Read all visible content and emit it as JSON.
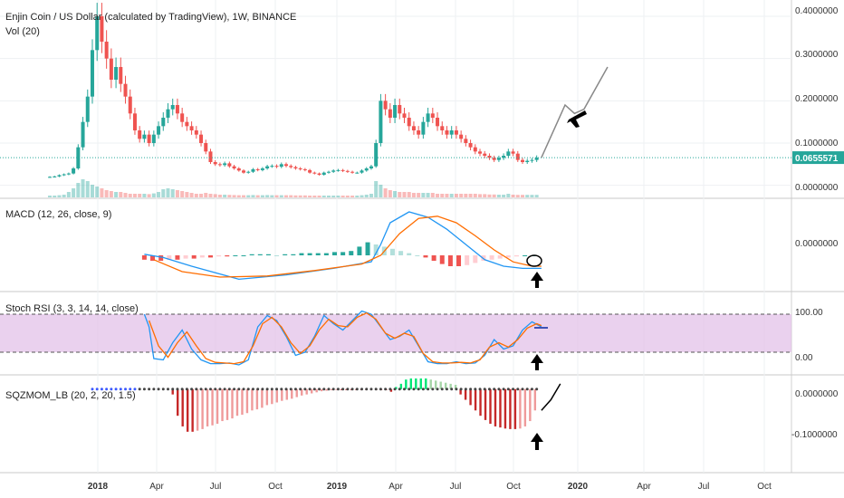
{
  "chart_data": {
    "type": "candlestick-with-indicators",
    "title": "Enjin Coin / US Dollar (calculated by TradingView), 1W, BINANCE",
    "x_axis": {
      "labels": [
        "2018",
        "Apr",
        "Jul",
        "Oct",
        "2019",
        "Apr",
        "Jul",
        "Oct",
        "2020",
        "Apr",
        "Jul",
        "Oct"
      ],
      "major": [
        "2018",
        "2019",
        "2020"
      ]
    },
    "price_pane": {
      "volume_label": "Vol (20)",
      "y_ticks": [
        "0.4000000",
        "0.3000000",
        "0.2000000",
        "0.1000000",
        "0.0000000"
      ],
      "y_range": [
        -0.02,
        0.43
      ],
      "current_price": "0.0655571",
      "current_price_value": 0.0655571,
      "up_color": "#26a69a",
      "down_color": "#ef5350",
      "weekly_closes": [
        0.02,
        0.021,
        0.024,
        0.026,
        0.028,
        0.04,
        0.09,
        0.15,
        0.21,
        0.32,
        0.4,
        0.34,
        0.3,
        0.25,
        0.28,
        0.24,
        0.21,
        0.17,
        0.13,
        0.11,
        0.12,
        0.1,
        0.12,
        0.14,
        0.16,
        0.18,
        0.19,
        0.17,
        0.15,
        0.14,
        0.13,
        0.12,
        0.1,
        0.08,
        0.055,
        0.05,
        0.048,
        0.052,
        0.045,
        0.04,
        0.035,
        0.03,
        0.032,
        0.038,
        0.036,
        0.04,
        0.045,
        0.046,
        0.044,
        0.05,
        0.046,
        0.043,
        0.04,
        0.038,
        0.036,
        0.03,
        0.028,
        0.025,
        0.03,
        0.032,
        0.035,
        0.036,
        0.034,
        0.032,
        0.03,
        0.03,
        0.035,
        0.04,
        0.045,
        0.1,
        0.2,
        0.18,
        0.16,
        0.19,
        0.17,
        0.16,
        0.14,
        0.13,
        0.12,
        0.15,
        0.17,
        0.16,
        0.14,
        0.13,
        0.12,
        0.13,
        0.12,
        0.11,
        0.1,
        0.09,
        0.08,
        0.075,
        0.07,
        0.065,
        0.06,
        0.065,
        0.07,
        0.08,
        0.075,
        0.06,
        0.055,
        0.058,
        0.06,
        0.0655571
      ],
      "projection": [
        [
          104,
          0.0655
        ],
        [
          109,
          0.19
        ],
        [
          111,
          0.17
        ],
        [
          113,
          0.18
        ],
        [
          118,
          0.28
        ]
      ],
      "volume_levels": [
        0.1,
        0.1,
        0.12,
        0.15,
        0.3,
        0.5,
        0.8,
        1.0,
        0.9,
        0.7,
        0.6,
        0.5,
        0.4,
        0.35,
        0.3,
        0.3,
        0.25,
        0.2,
        0.2,
        0.2,
        0.2,
        0.18,
        0.22,
        0.3,
        0.45,
        0.5,
        0.45,
        0.4,
        0.35,
        0.3,
        0.25,
        0.2,
        0.2,
        0.25,
        0.2,
        0.18,
        0.15,
        0.15,
        0.14,
        0.13,
        0.12,
        0.12,
        0.12,
        0.13,
        0.12,
        0.12,
        0.13,
        0.12,
        0.12,
        0.12,
        0.12,
        0.12,
        0.11,
        0.11,
        0.11,
        0.1,
        0.1,
        0.1,
        0.1,
        0.1,
        0.1,
        0.1,
        0.1,
        0.1,
        0.1,
        0.1,
        0.12,
        0.15,
        0.2,
        0.9,
        0.7,
        0.5,
        0.4,
        0.35,
        0.3,
        0.3,
        0.3,
        0.25,
        0.25,
        0.25,
        0.25,
        0.25,
        0.2,
        0.2,
        0.2,
        0.2,
        0.2,
        0.2,
        0.2,
        0.2,
        0.2,
        0.18,
        0.18,
        0.16,
        0.16,
        0.15,
        0.15,
        0.2,
        0.15,
        0.14,
        0.14,
        0.14,
        0.14,
        0.14
      ]
    },
    "macd_pane": {
      "label": "MACD (12, 26, close, 9)",
      "y_ticks": [
        "0.0000000"
      ],
      "macd_line": [
        [
          20,
          0.001
        ],
        [
          24,
          -0.002
        ],
        [
          30,
          -0.01
        ],
        [
          40,
          -0.022
        ],
        [
          50,
          -0.018
        ],
        [
          60,
          -0.012
        ],
        [
          68,
          -0.006
        ],
        [
          70,
          0.01
        ],
        [
          72,
          0.03
        ],
        [
          76,
          0.04
        ],
        [
          80,
          0.035
        ],
        [
          84,
          0.024
        ],
        [
          88,
          0.01
        ],
        [
          92,
          -0.004
        ],
        [
          96,
          -0.01
        ],
        [
          100,
          -0.012
        ],
        [
          104,
          -0.012
        ]
      ],
      "signal_line": [
        [
          22,
          -0.004
        ],
        [
          28,
          -0.015
        ],
        [
          36,
          -0.02
        ],
        [
          46,
          -0.019
        ],
        [
          56,
          -0.014
        ],
        [
          66,
          -0.008
        ],
        [
          70,
          0.0
        ],
        [
          74,
          0.02
        ],
        [
          78,
          0.034
        ],
        [
          82,
          0.036
        ],
        [
          86,
          0.03
        ],
        [
          90,
          0.018
        ],
        [
          94,
          0.005
        ],
        [
          98,
          -0.006
        ],
        [
          102,
          -0.01
        ],
        [
          104,
          -0.01
        ]
      ],
      "histogram_levels": [
        -0.004,
        -0.005,
        -0.005,
        -0.004,
        -0.004,
        -0.003,
        -0.003,
        -0.002,
        -0.002,
        -0.001,
        -0.001,
        0.0,
        0.0,
        0.001,
        0.001,
        0.001,
        0.0,
        0.001,
        0.001,
        0.002,
        0.002,
        0.002,
        0.002,
        0.003,
        0.003,
        0.004,
        0.008,
        0.012,
        0.01,
        0.008,
        0.006,
        0.004,
        0.002,
        0.0,
        -0.002,
        -0.005,
        -0.008,
        -0.01,
        -0.01,
        -0.009,
        -0.007,
        -0.005,
        -0.004,
        -0.003,
        -0.002,
        -0.001,
        0.0,
        0.0
      ],
      "histogram_start": 20,
      "y_range": [
        -0.03,
        0.05
      ]
    },
    "stoch_rsi_pane": {
      "label": "Stoch RSI (3, 3, 14, 14, close)",
      "y_ticks": [
        "100.00",
        "0.00"
      ],
      "y_range": [
        -10,
        110
      ],
      "band_upper": 80,
      "band_lower": 20,
      "k_line": [
        [
          20,
          80
        ],
        [
          21,
          60
        ],
        [
          22,
          10
        ],
        [
          24,
          8
        ],
        [
          26,
          35
        ],
        [
          28,
          55
        ],
        [
          30,
          25
        ],
        [
          32,
          8
        ],
        [
          34,
          2
        ],
        [
          36,
          2
        ],
        [
          38,
          3
        ],
        [
          40,
          0
        ],
        [
          42,
          8
        ],
        [
          44,
          60
        ],
        [
          46,
          78
        ],
        [
          48,
          70
        ],
        [
          50,
          45
        ],
        [
          52,
          15
        ],
        [
          54,
          20
        ],
        [
          56,
          45
        ],
        [
          58,
          78
        ],
        [
          60,
          65
        ],
        [
          62,
          55
        ],
        [
          64,
          70
        ],
        [
          66,
          85
        ],
        [
          68,
          80
        ],
        [
          70,
          60
        ],
        [
          72,
          40
        ],
        [
          74,
          45
        ],
        [
          76,
          55
        ],
        [
          78,
          30
        ],
        [
          80,
          5
        ],
        [
          82,
          2
        ],
        [
          84,
          2
        ],
        [
          86,
          5
        ],
        [
          88,
          2
        ],
        [
          90,
          3
        ],
        [
          92,
          15
        ],
        [
          94,
          40
        ],
        [
          96,
          25
        ],
        [
          98,
          30
        ],
        [
          100,
          55
        ],
        [
          102,
          68
        ],
        [
          104,
          60
        ]
      ],
      "d_line": [
        [
          21,
          70
        ],
        [
          23,
          30
        ],
        [
          25,
          12
        ],
        [
          27,
          35
        ],
        [
          29,
          52
        ],
        [
          31,
          30
        ],
        [
          33,
          10
        ],
        [
          35,
          4
        ],
        [
          37,
          3
        ],
        [
          39,
          2
        ],
        [
          41,
          5
        ],
        [
          43,
          30
        ],
        [
          45,
          65
        ],
        [
          47,
          75
        ],
        [
          49,
          60
        ],
        [
          51,
          35
        ],
        [
          53,
          18
        ],
        [
          55,
          30
        ],
        [
          57,
          55
        ],
        [
          59,
          72
        ],
        [
          61,
          62
        ],
        [
          63,
          60
        ],
        [
          65,
          75
        ],
        [
          67,
          82
        ],
        [
          69,
          72
        ],
        [
          71,
          50
        ],
        [
          73,
          42
        ],
        [
          75,
          50
        ],
        [
          77,
          45
        ],
        [
          79,
          18
        ],
        [
          81,
          5
        ],
        [
          83,
          3
        ],
        [
          85,
          3
        ],
        [
          87,
          4
        ],
        [
          89,
          3
        ],
        [
          91,
          8
        ],
        [
          93,
          28
        ],
        [
          95,
          35
        ],
        [
          97,
          28
        ],
        [
          99,
          40
        ],
        [
          101,
          58
        ],
        [
          103,
          65
        ],
        [
          104,
          62
        ]
      ]
    },
    "sqzmom_pane": {
      "label": "SQZMOM_LB (20, 2, 20, 1.5)",
      "y_ticks": [
        "0.0000000",
        "-0.1000000"
      ],
      "y_range": [
        -0.15,
        0.02
      ],
      "histogram_start": 26,
      "histogram_levels": [
        -0.01,
        -0.05,
        -0.07,
        -0.08,
        -0.08,
        -0.078,
        -0.075,
        -0.07,
        -0.068,
        -0.065,
        -0.06,
        -0.058,
        -0.055,
        -0.05,
        -0.048,
        -0.045,
        -0.04,
        -0.038,
        -0.035,
        -0.03,
        -0.028,
        -0.025,
        -0.022,
        -0.02,
        -0.018,
        -0.015,
        -0.012,
        -0.01,
        -0.008,
        -0.006,
        -0.004,
        -0.003,
        -0.002,
        -0.001,
        -0.001,
        -0.001,
        -0.001,
        -0.001,
        -0.001,
        -0.001,
        -0.001,
        -0.001,
        -0.001,
        -0.001,
        -0.005,
        0.004,
        0.01,
        0.018,
        0.02,
        0.02,
        0.02,
        0.02,
        0.018,
        0.016,
        0.014,
        0.012,
        0.01,
        0.008,
        -0.01,
        -0.02,
        -0.03,
        -0.04,
        -0.05,
        -0.058,
        -0.065,
        -0.07,
        -0.072,
        -0.074,
        -0.075,
        -0.075,
        -0.074,
        -0.07,
        -0.06,
        -0.04
      ],
      "projection": [
        [
          104,
          -0.04
        ],
        [
          106,
          -0.02
        ],
        [
          108,
          0.01
        ]
      ]
    },
    "annotations": [
      {
        "type": "arrow-up",
        "pane": "macd"
      },
      {
        "type": "arrow-up",
        "pane": "stoch_rsi"
      },
      {
        "type": "arrow-up",
        "pane": "sqzmom"
      },
      {
        "type": "circle",
        "pane": "macd"
      },
      {
        "type": "airplane",
        "pane": "price"
      }
    ]
  }
}
